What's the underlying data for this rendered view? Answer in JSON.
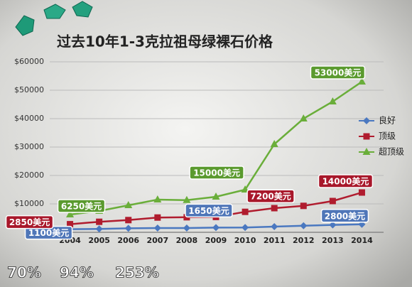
{
  "chart_data": {
    "type": "line",
    "title": "过去10年1-3克拉祖母绿裸石价格",
    "categories": [
      "2004",
      "2005",
      "2006",
      "2007",
      "2008",
      "2009",
      "2010",
      "2011",
      "2012",
      "2013",
      "2014"
    ],
    "series": [
      {
        "name": "良好",
        "color": "#4a78c0",
        "marker": "diamond",
        "values": [
          1100,
          1200,
          1400,
          1500,
          1500,
          1650,
          1700,
          2000,
          2300,
          2600,
          2800
        ],
        "value_labels": [
          "1100美元",
          null,
          null,
          null,
          null,
          "1650美元",
          null,
          null,
          null,
          null,
          "2800美元"
        ]
      },
      {
        "name": "顶级",
        "color": "#b01c2e",
        "marker": "square",
        "values": [
          2850,
          3700,
          4300,
          5200,
          5300,
          5400,
          7200,
          8500,
          9300,
          11000,
          14000
        ],
        "value_labels": [
          "2850美元",
          null,
          null,
          null,
          null,
          null,
          "7200美元",
          null,
          null,
          null,
          "14000美元"
        ]
      },
      {
        "name": "超顶级",
        "color": "#6aae3a",
        "marker": "triangle",
        "values": [
          6250,
          7500,
          9500,
          11500,
          11300,
          12500,
          15000,
          31000,
          40000,
          46000,
          53000
        ],
        "value_labels": [
          "6250美元",
          null,
          null,
          null,
          null,
          null,
          "15000美元",
          null,
          null,
          null,
          "53000美元"
        ]
      }
    ],
    "ylim": [
      0,
      60000
    ],
    "yticks": [
      {
        "value": 10000,
        "label": "$10000"
      },
      {
        "value": 20000,
        "label": "$20000"
      },
      {
        "value": 30000,
        "label": "$30000"
      },
      {
        "value": 40000,
        "label": "$40000"
      },
      {
        "value": 50000,
        "label": "$50000"
      },
      {
        "value": 60000,
        "label": "$60000"
      }
    ],
    "grid": true,
    "legend": "right",
    "annotations": [
      "70%",
      "94%",
      "253%"
    ]
  }
}
